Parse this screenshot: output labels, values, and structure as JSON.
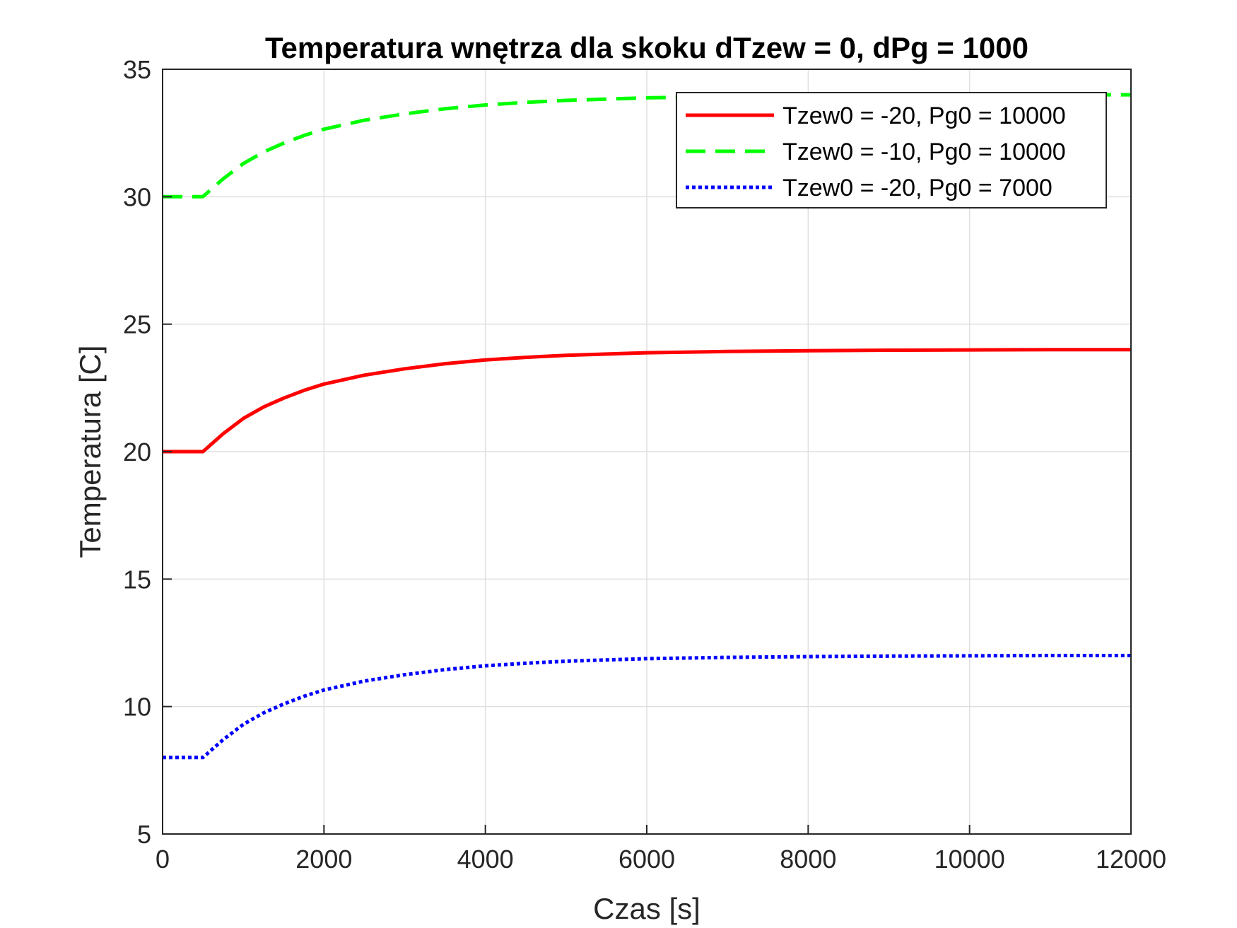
{
  "chart_data": {
    "type": "line",
    "title": "Temperatura wnętrza dla skoku dTzew = 0, dPg = 1000",
    "xlabel": "Czas [s]",
    "ylabel": "Temperatura [C]",
    "xlim": [
      0,
      12000
    ],
    "ylim": [
      5,
      35
    ],
    "xticks": [
      0,
      2000,
      4000,
      6000,
      8000,
      10000,
      12000
    ],
    "xtick_labels": [
      "0",
      "2000",
      "4000",
      "6000",
      "8000",
      "10000",
      "12000"
    ],
    "yticks": [
      5,
      10,
      15,
      20,
      25,
      30,
      35
    ],
    "ytick_labels": [
      "5",
      "10",
      "15",
      "20",
      "25",
      "30",
      "35"
    ],
    "grid": true,
    "legend_position": "top-right",
    "series": [
      {
        "name": "Tzew0 = -20, Pg0 = 10000",
        "color": "#ff0000",
        "style": "solid",
        "x": [
          0,
          500,
          750,
          1000,
          1250,
          1500,
          1750,
          2000,
          2500,
          3000,
          3500,
          4000,
          4500,
          5000,
          6000,
          7000,
          8000,
          9000,
          10000,
          11000,
          12000
        ],
        "y": [
          20,
          20,
          20.7,
          21.3,
          21.75,
          22.1,
          22.4,
          22.65,
          23.0,
          23.25,
          23.45,
          23.6,
          23.7,
          23.78,
          23.88,
          23.93,
          23.96,
          23.98,
          23.99,
          24.0,
          24.0
        ]
      },
      {
        "name": "Tzew0 = -10, Pg0 = 10000",
        "color": "#00ff00",
        "style": "dashed",
        "x": [
          0,
          500,
          750,
          1000,
          1250,
          1500,
          1750,
          2000,
          2500,
          3000,
          3500,
          4000,
          4500,
          5000,
          6000,
          7000,
          8000,
          9000,
          10000,
          11000,
          12000
        ],
        "y": [
          30,
          30,
          30.7,
          31.3,
          31.75,
          32.1,
          32.4,
          32.65,
          33.0,
          33.25,
          33.45,
          33.6,
          33.7,
          33.78,
          33.88,
          33.93,
          33.96,
          33.98,
          33.99,
          34.0,
          34.0
        ]
      },
      {
        "name": "Tzew0 = -20, Pg0 = 7000",
        "color": "#0000ff",
        "style": "dotted",
        "x": [
          0,
          500,
          750,
          1000,
          1250,
          1500,
          1750,
          2000,
          2500,
          3000,
          3500,
          4000,
          4500,
          5000,
          6000,
          7000,
          8000,
          9000,
          10000,
          11000,
          12000
        ],
        "y": [
          8,
          8,
          8.7,
          9.3,
          9.75,
          10.1,
          10.4,
          10.65,
          11.0,
          11.25,
          11.45,
          11.6,
          11.7,
          11.78,
          11.88,
          11.93,
          11.96,
          11.98,
          11.99,
          12.0,
          12.0
        ]
      }
    ]
  }
}
